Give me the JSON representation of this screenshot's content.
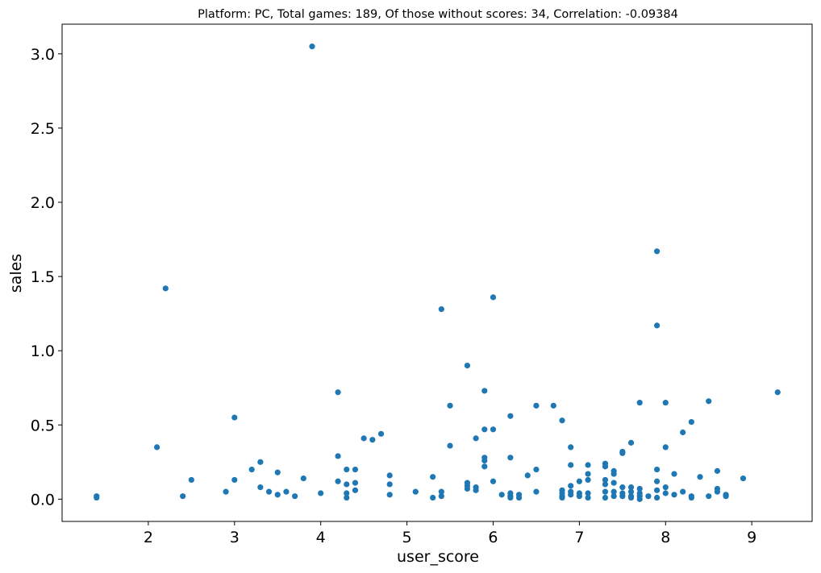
{
  "chart_data": {
    "type": "scatter",
    "title": "Platform: PC, Total games: 189, Of those without scores: 34, Correlation: -0.09384",
    "xlabel": "user_score",
    "ylabel": "sales",
    "xlim": [
      1.0,
      9.7
    ],
    "ylim": [
      -0.15,
      3.2
    ],
    "xticks": [
      2,
      3,
      4,
      5,
      6,
      7,
      8,
      9
    ],
    "yticks": [
      0.0,
      0.5,
      1.0,
      1.5,
      2.0,
      2.5,
      3.0
    ],
    "xtick_labels": [
      "2",
      "3",
      "4",
      "5",
      "6",
      "7",
      "8",
      "9"
    ],
    "ytick_labels": [
      "0.0",
      "0.5",
      "1.0",
      "1.5",
      "2.0",
      "2.5",
      "3.0"
    ],
    "grid": false,
    "marker_color": "#1f77b4",
    "points": [
      [
        1.4,
        0.01
      ],
      [
        1.4,
        0.02
      ],
      [
        2.1,
        0.35
      ],
      [
        2.2,
        1.42
      ],
      [
        2.4,
        0.02
      ],
      [
        2.5,
        0.13
      ],
      [
        2.9,
        0.05
      ],
      [
        3.0,
        0.55
      ],
      [
        3.0,
        0.13
      ],
      [
        3.2,
        0.2
      ],
      [
        3.3,
        0.25
      ],
      [
        3.3,
        0.08
      ],
      [
        3.4,
        0.05
      ],
      [
        3.5,
        0.18
      ],
      [
        3.5,
        0.03
      ],
      [
        3.6,
        0.05
      ],
      [
        3.7,
        0.02
      ],
      [
        3.8,
        0.14
      ],
      [
        3.9,
        3.05
      ],
      [
        4.0,
        0.04
      ],
      [
        4.2,
        0.72
      ],
      [
        4.2,
        0.29
      ],
      [
        4.2,
        0.12
      ],
      [
        4.3,
        0.2
      ],
      [
        4.3,
        0.1
      ],
      [
        4.3,
        0.04
      ],
      [
        4.3,
        0.01
      ],
      [
        4.4,
        0.2
      ],
      [
        4.4,
        0.11
      ],
      [
        4.4,
        0.06
      ],
      [
        4.5,
        0.41
      ],
      [
        4.6,
        0.4
      ],
      [
        4.7,
        0.44
      ],
      [
        4.8,
        0.16
      ],
      [
        4.8,
        0.1
      ],
      [
        4.8,
        0.03
      ],
      [
        5.1,
        0.05
      ],
      [
        5.3,
        0.15
      ],
      [
        5.3,
        0.01
      ],
      [
        5.4,
        1.28
      ],
      [
        5.4,
        0.05
      ],
      [
        5.4,
        0.02
      ],
      [
        5.5,
        0.63
      ],
      [
        5.5,
        0.36
      ],
      [
        5.7,
        0.9
      ],
      [
        5.7,
        0.11
      ],
      [
        5.7,
        0.09
      ],
      [
        5.7,
        0.07
      ],
      [
        5.8,
        0.41
      ],
      [
        5.8,
        0.08
      ],
      [
        5.8,
        0.06
      ],
      [
        5.9,
        0.73
      ],
      [
        5.9,
        0.47
      ],
      [
        5.9,
        0.28
      ],
      [
        5.9,
        0.26
      ],
      [
        5.9,
        0.22
      ],
      [
        6.0,
        1.36
      ],
      [
        6.0,
        0.47
      ],
      [
        6.0,
        0.12
      ],
      [
        6.1,
        0.03
      ],
      [
        6.2,
        0.56
      ],
      [
        6.2,
        0.28
      ],
      [
        6.2,
        0.04
      ],
      [
        6.2,
        0.02
      ],
      [
        6.2,
        0.01
      ],
      [
        6.3,
        0.03
      ],
      [
        6.3,
        0.01
      ],
      [
        6.4,
        0.16
      ],
      [
        6.5,
        0.63
      ],
      [
        6.5,
        0.2
      ],
      [
        6.5,
        0.05
      ],
      [
        6.7,
        0.63
      ],
      [
        6.8,
        0.53
      ],
      [
        6.8,
        0.06
      ],
      [
        6.8,
        0.04
      ],
      [
        6.8,
        0.02
      ],
      [
        6.8,
        0.01
      ],
      [
        6.9,
        0.35
      ],
      [
        6.9,
        0.23
      ],
      [
        6.9,
        0.09
      ],
      [
        6.9,
        0.05
      ],
      [
        6.9,
        0.03
      ],
      [
        7.0,
        0.12
      ],
      [
        7.0,
        0.04
      ],
      [
        7.0,
        0.02
      ],
      [
        7.1,
        0.23
      ],
      [
        7.1,
        0.17
      ],
      [
        7.1,
        0.13
      ],
      [
        7.1,
        0.04
      ],
      [
        7.1,
        0.01
      ],
      [
        7.3,
        0.24
      ],
      [
        7.3,
        0.22
      ],
      [
        7.3,
        0.13
      ],
      [
        7.3,
        0.1
      ],
      [
        7.3,
        0.05
      ],
      [
        7.3,
        0.01
      ],
      [
        7.4,
        0.19
      ],
      [
        7.4,
        0.17
      ],
      [
        7.4,
        0.11
      ],
      [
        7.4,
        0.05
      ],
      [
        7.4,
        0.02
      ],
      [
        7.5,
        0.32
      ],
      [
        7.5,
        0.31
      ],
      [
        7.5,
        0.08
      ],
      [
        7.5,
        0.04
      ],
      [
        7.5,
        0.02
      ],
      [
        7.6,
        0.38
      ],
      [
        7.6,
        0.08
      ],
      [
        7.6,
        0.05
      ],
      [
        7.6,
        0.02
      ],
      [
        7.6,
        0.01
      ],
      [
        7.7,
        0.65
      ],
      [
        7.7,
        0.07
      ],
      [
        7.7,
        0.04
      ],
      [
        7.7,
        0.02
      ],
      [
        7.7,
        0.0
      ],
      [
        7.8,
        0.02
      ],
      [
        7.9,
        1.67
      ],
      [
        7.9,
        1.17
      ],
      [
        7.9,
        0.2
      ],
      [
        7.9,
        0.12
      ],
      [
        7.9,
        0.06
      ],
      [
        7.9,
        0.01
      ],
      [
        8.0,
        0.65
      ],
      [
        8.0,
        0.35
      ],
      [
        8.0,
        0.08
      ],
      [
        8.0,
        0.04
      ],
      [
        8.1,
        0.17
      ],
      [
        8.1,
        0.03
      ],
      [
        8.2,
        0.45
      ],
      [
        8.2,
        0.05
      ],
      [
        8.3,
        0.52
      ],
      [
        8.3,
        0.02
      ],
      [
        8.3,
        0.01
      ],
      [
        8.4,
        0.15
      ],
      [
        8.5,
        0.66
      ],
      [
        8.5,
        0.02
      ],
      [
        8.6,
        0.19
      ],
      [
        8.6,
        0.07
      ],
      [
        8.6,
        0.05
      ],
      [
        8.7,
        0.03
      ],
      [
        8.7,
        0.02
      ],
      [
        8.9,
        0.14
      ],
      [
        9.3,
        0.72
      ]
    ]
  }
}
